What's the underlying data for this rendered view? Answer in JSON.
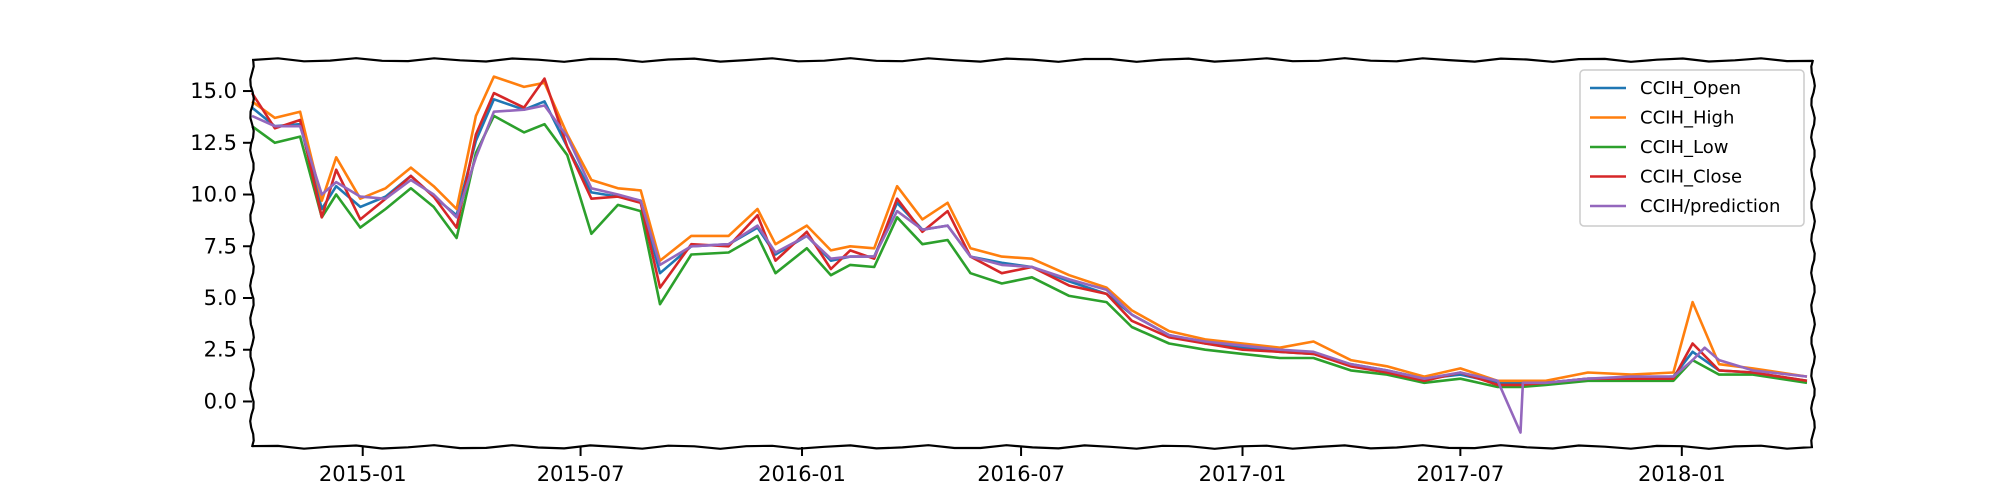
{
  "chart_data": {
    "type": "line",
    "title": "",
    "xlabel": "",
    "ylabel": "",
    "x_range": [
      "2014-10-01",
      "2018-04-20"
    ],
    "ylim": [
      -2.2,
      16.5
    ],
    "x_ticks": [
      "2015-01",
      "2015-07",
      "2016-01",
      "2016-07",
      "2017-01",
      "2017-07",
      "2018-01"
    ],
    "y_ticks": [
      "0.0",
      "2.5",
      "5.0",
      "7.5",
      "10.0",
      "12.5",
      "15.0"
    ],
    "grid": false,
    "legend_position": "top-right",
    "series": [
      {
        "name": "CCIH_Open",
        "color": "#1f77b4",
        "points": [
          [
            "2014-10-01",
            14.2
          ],
          [
            "2014-10-20",
            13.3
          ],
          [
            "2014-11-10",
            13.4
          ],
          [
            "2014-11-28",
            9.3
          ],
          [
            "2014-12-10",
            10.4
          ],
          [
            "2014-12-30",
            9.4
          ],
          [
            "2015-01-20",
            9.9
          ],
          [
            "2015-02-10",
            10.9
          ],
          [
            "2015-03-01",
            9.9
          ],
          [
            "2015-03-20",
            9.0
          ],
          [
            "2015-04-05",
            12.6
          ],
          [
            "2015-04-20",
            14.6
          ],
          [
            "2015-05-15",
            14.1
          ],
          [
            "2015-06-01",
            14.5
          ],
          [
            "2015-06-20",
            12.3
          ],
          [
            "2015-07-10",
            10.1
          ],
          [
            "2015-08-01",
            9.9
          ],
          [
            "2015-08-20",
            9.7
          ],
          [
            "2015-09-05",
            6.2
          ],
          [
            "2015-10-01",
            7.5
          ],
          [
            "2015-11-01",
            7.6
          ],
          [
            "2015-11-25",
            8.4
          ],
          [
            "2015-12-10",
            7.1
          ],
          [
            "2016-01-05",
            8.0
          ],
          [
            "2016-01-25",
            6.8
          ],
          [
            "2016-02-10",
            7.0
          ],
          [
            "2016-03-01",
            7.0
          ],
          [
            "2016-03-20",
            9.6
          ],
          [
            "2016-04-10",
            8.3
          ],
          [
            "2016-05-01",
            8.5
          ],
          [
            "2016-05-20",
            7.0
          ],
          [
            "2016-06-15",
            6.7
          ],
          [
            "2016-07-10",
            6.5
          ],
          [
            "2016-08-10",
            5.8
          ],
          [
            "2016-09-10",
            5.2
          ],
          [
            "2016-10-01",
            4.2
          ],
          [
            "2016-11-01",
            3.2
          ],
          [
            "2016-12-01",
            2.8
          ],
          [
            "2017-01-01",
            2.6
          ],
          [
            "2017-02-01",
            2.4
          ],
          [
            "2017-03-01",
            2.3
          ],
          [
            "2017-04-01",
            1.8
          ],
          [
            "2017-05-01",
            1.5
          ],
          [
            "2017-06-01",
            1.1
          ],
          [
            "2017-07-01",
            1.3
          ],
          [
            "2017-08-01",
            0.9
          ],
          [
            "2017-08-20",
            0.9
          ],
          [
            "2017-09-10",
            0.9
          ],
          [
            "2017-10-15",
            1.1
          ],
          [
            "2017-11-20",
            1.1
          ],
          [
            "2017-12-25",
            1.2
          ],
          [
            "2018-01-10",
            2.4
          ],
          [
            "2018-02-01",
            1.5
          ],
          [
            "2018-03-01",
            1.4
          ],
          [
            "2018-04-15",
            1.0
          ]
        ]
      },
      {
        "name": "CCIH_High",
        "color": "#ff7f0e",
        "points": [
          [
            "2014-10-01",
            14.5
          ],
          [
            "2014-10-20",
            13.7
          ],
          [
            "2014-11-10",
            14.0
          ],
          [
            "2014-11-28",
            9.7
          ],
          [
            "2014-12-10",
            11.8
          ],
          [
            "2014-12-30",
            9.8
          ],
          [
            "2015-01-20",
            10.3
          ],
          [
            "2015-02-10",
            11.3
          ],
          [
            "2015-03-01",
            10.4
          ],
          [
            "2015-03-20",
            9.3
          ],
          [
            "2015-04-05",
            13.8
          ],
          [
            "2015-04-20",
            15.7
          ],
          [
            "2015-05-15",
            15.2
          ],
          [
            "2015-06-01",
            15.4
          ],
          [
            "2015-06-20",
            12.9
          ],
          [
            "2015-07-10",
            10.7
          ],
          [
            "2015-08-01",
            10.3
          ],
          [
            "2015-08-20",
            10.2
          ],
          [
            "2015-09-05",
            6.8
          ],
          [
            "2015-10-01",
            8.0
          ],
          [
            "2015-11-01",
            8.0
          ],
          [
            "2015-11-25",
            9.3
          ],
          [
            "2015-12-10",
            7.6
          ],
          [
            "2016-01-05",
            8.5
          ],
          [
            "2016-01-25",
            7.3
          ],
          [
            "2016-02-10",
            7.5
          ],
          [
            "2016-03-01",
            7.4
          ],
          [
            "2016-03-20",
            10.4
          ],
          [
            "2016-04-10",
            8.8
          ],
          [
            "2016-05-01",
            9.6
          ],
          [
            "2016-05-20",
            7.4
          ],
          [
            "2016-06-15",
            7.0
          ],
          [
            "2016-07-10",
            6.9
          ],
          [
            "2016-08-10",
            6.1
          ],
          [
            "2016-09-10",
            5.5
          ],
          [
            "2016-10-01",
            4.4
          ],
          [
            "2016-11-01",
            3.4
          ],
          [
            "2016-12-01",
            3.0
          ],
          [
            "2017-01-01",
            2.8
          ],
          [
            "2017-02-01",
            2.6
          ],
          [
            "2017-03-01",
            2.9
          ],
          [
            "2017-04-01",
            2.0
          ],
          [
            "2017-05-01",
            1.7
          ],
          [
            "2017-06-01",
            1.2
          ],
          [
            "2017-07-01",
            1.6
          ],
          [
            "2017-08-01",
            1.0
          ],
          [
            "2017-08-20",
            1.0
          ],
          [
            "2017-09-10",
            1.0
          ],
          [
            "2017-10-15",
            1.4
          ],
          [
            "2017-11-20",
            1.3
          ],
          [
            "2017-12-25",
            1.4
          ],
          [
            "2018-01-10",
            4.8
          ],
          [
            "2018-02-01",
            1.8
          ],
          [
            "2018-03-01",
            1.6
          ],
          [
            "2018-04-15",
            1.2
          ]
        ]
      },
      {
        "name": "CCIH_Low",
        "color": "#2ca02c",
        "points": [
          [
            "2014-10-01",
            13.3
          ],
          [
            "2014-10-20",
            12.5
          ],
          [
            "2014-11-10",
            12.8
          ],
          [
            "2014-11-28",
            8.9
          ],
          [
            "2014-12-10",
            10.0
          ],
          [
            "2014-12-30",
            8.4
          ],
          [
            "2015-01-20",
            9.3
          ],
          [
            "2015-02-10",
            10.3
          ],
          [
            "2015-03-01",
            9.4
          ],
          [
            "2015-03-20",
            7.9
          ],
          [
            "2015-04-05",
            12.0
          ],
          [
            "2015-04-20",
            13.8
          ],
          [
            "2015-05-15",
            13.0
          ],
          [
            "2015-06-01",
            13.4
          ],
          [
            "2015-06-20",
            11.9
          ],
          [
            "2015-07-10",
            8.1
          ],
          [
            "2015-08-01",
            9.5
          ],
          [
            "2015-08-20",
            9.2
          ],
          [
            "2015-09-05",
            4.7
          ],
          [
            "2015-10-01",
            7.1
          ],
          [
            "2015-11-01",
            7.2
          ],
          [
            "2015-11-25",
            8.0
          ],
          [
            "2015-12-10",
            6.2
          ],
          [
            "2016-01-05",
            7.4
          ],
          [
            "2016-01-25",
            6.1
          ],
          [
            "2016-02-10",
            6.6
          ],
          [
            "2016-03-01",
            6.5
          ],
          [
            "2016-03-20",
            8.9
          ],
          [
            "2016-04-10",
            7.6
          ],
          [
            "2016-05-01",
            7.8
          ],
          [
            "2016-05-20",
            6.2
          ],
          [
            "2016-06-15",
            5.7
          ],
          [
            "2016-07-10",
            6.0
          ],
          [
            "2016-08-10",
            5.1
          ],
          [
            "2016-09-10",
            4.8
          ],
          [
            "2016-10-01",
            3.6
          ],
          [
            "2016-11-01",
            2.8
          ],
          [
            "2016-12-01",
            2.5
          ],
          [
            "2017-01-01",
            2.3
          ],
          [
            "2017-02-01",
            2.1
          ],
          [
            "2017-03-01",
            2.1
          ],
          [
            "2017-04-01",
            1.5
          ],
          [
            "2017-05-01",
            1.3
          ],
          [
            "2017-06-01",
            0.9
          ],
          [
            "2017-07-01",
            1.1
          ],
          [
            "2017-08-01",
            0.7
          ],
          [
            "2017-08-20",
            0.7
          ],
          [
            "2017-09-10",
            0.8
          ],
          [
            "2017-10-15",
            1.0
          ],
          [
            "2017-11-20",
            1.0
          ],
          [
            "2017-12-25",
            1.0
          ],
          [
            "2018-01-10",
            2.0
          ],
          [
            "2018-02-01",
            1.3
          ],
          [
            "2018-03-01",
            1.3
          ],
          [
            "2018-04-15",
            0.9
          ]
        ]
      },
      {
        "name": "CCIH_Close",
        "color": "#d62728",
        "points": [
          [
            "2014-10-01",
            14.9
          ],
          [
            "2014-10-20",
            13.2
          ],
          [
            "2014-11-10",
            13.6
          ],
          [
            "2014-11-28",
            8.9
          ],
          [
            "2014-12-10",
            11.2
          ],
          [
            "2014-12-30",
            8.8
          ],
          [
            "2015-01-20",
            9.8
          ],
          [
            "2015-02-10",
            10.9
          ],
          [
            "2015-03-01",
            9.9
          ],
          [
            "2015-03-20",
            8.4
          ],
          [
            "2015-04-05",
            12.9
          ],
          [
            "2015-04-20",
            14.9
          ],
          [
            "2015-05-15",
            14.2
          ],
          [
            "2015-06-01",
            15.6
          ],
          [
            "2015-06-20",
            12.3
          ],
          [
            "2015-07-10",
            9.8
          ],
          [
            "2015-08-01",
            9.9
          ],
          [
            "2015-08-20",
            9.6
          ],
          [
            "2015-09-05",
            5.5
          ],
          [
            "2015-10-01",
            7.6
          ],
          [
            "2015-11-01",
            7.5
          ],
          [
            "2015-11-25",
            9.0
          ],
          [
            "2015-12-10",
            6.8
          ],
          [
            "2016-01-05",
            8.2
          ],
          [
            "2016-01-25",
            6.4
          ],
          [
            "2016-02-10",
            7.3
          ],
          [
            "2016-03-01",
            6.9
          ],
          [
            "2016-03-20",
            9.8
          ],
          [
            "2016-04-10",
            8.2
          ],
          [
            "2016-05-01",
            9.2
          ],
          [
            "2016-05-20",
            7.0
          ],
          [
            "2016-06-15",
            6.2
          ],
          [
            "2016-07-10",
            6.5
          ],
          [
            "2016-08-10",
            5.6
          ],
          [
            "2016-09-10",
            5.2
          ],
          [
            "2016-10-01",
            3.9
          ],
          [
            "2016-11-01",
            3.1
          ],
          [
            "2016-12-01",
            2.8
          ],
          [
            "2017-01-01",
            2.5
          ],
          [
            "2017-02-01",
            2.4
          ],
          [
            "2017-03-01",
            2.3
          ],
          [
            "2017-04-01",
            1.7
          ],
          [
            "2017-05-01",
            1.4
          ],
          [
            "2017-06-01",
            1.0
          ],
          [
            "2017-07-01",
            1.4
          ],
          [
            "2017-08-01",
            0.8
          ],
          [
            "2017-08-20",
            0.8
          ],
          [
            "2017-09-10",
            0.9
          ],
          [
            "2017-10-15",
            1.1
          ],
          [
            "2017-11-20",
            1.1
          ],
          [
            "2017-12-25",
            1.1
          ],
          [
            "2018-01-10",
            2.8
          ],
          [
            "2018-02-01",
            1.5
          ],
          [
            "2018-03-01",
            1.4
          ],
          [
            "2018-04-15",
            1.0
          ]
        ]
      },
      {
        "name": "CCIH/prediction",
        "color": "#9467bd",
        "points": [
          [
            "2014-10-01",
            13.8
          ],
          [
            "2014-10-20",
            13.3
          ],
          [
            "2014-11-10",
            13.3
          ],
          [
            "2014-11-28",
            10.0
          ],
          [
            "2014-12-10",
            10.6
          ],
          [
            "2014-12-30",
            9.9
          ],
          [
            "2015-01-20",
            9.8
          ],
          [
            "2015-02-10",
            10.7
          ],
          [
            "2015-03-01",
            10.0
          ],
          [
            "2015-03-20",
            8.9
          ],
          [
            "2015-04-05",
            11.8
          ],
          [
            "2015-04-20",
            14.0
          ],
          [
            "2015-05-15",
            14.1
          ],
          [
            "2015-06-01",
            14.3
          ],
          [
            "2015-06-20",
            12.8
          ],
          [
            "2015-07-10",
            10.3
          ],
          [
            "2015-08-01",
            10.0
          ],
          [
            "2015-08-20",
            9.7
          ],
          [
            "2015-09-05",
            6.6
          ],
          [
            "2015-10-01",
            7.5
          ],
          [
            "2015-11-01",
            7.6
          ],
          [
            "2015-11-25",
            8.5
          ],
          [
            "2015-12-10",
            7.2
          ],
          [
            "2016-01-05",
            8.0
          ],
          [
            "2016-01-25",
            6.9
          ],
          [
            "2016-02-10",
            7.0
          ],
          [
            "2016-03-01",
            7.0
          ],
          [
            "2016-03-20",
            9.2
          ],
          [
            "2016-04-10",
            8.3
          ],
          [
            "2016-05-01",
            8.5
          ],
          [
            "2016-05-20",
            7.0
          ],
          [
            "2016-06-15",
            6.6
          ],
          [
            "2016-07-10",
            6.5
          ],
          [
            "2016-08-10",
            5.9
          ],
          [
            "2016-09-10",
            5.4
          ],
          [
            "2016-10-01",
            4.2
          ],
          [
            "2016-11-01",
            3.2
          ],
          [
            "2016-12-01",
            2.9
          ],
          [
            "2017-01-01",
            2.7
          ],
          [
            "2017-02-01",
            2.5
          ],
          [
            "2017-03-01",
            2.4
          ],
          [
            "2017-04-01",
            1.8
          ],
          [
            "2017-05-01",
            1.5
          ],
          [
            "2017-06-01",
            1.1
          ],
          [
            "2017-07-01",
            1.4
          ],
          [
            "2017-08-01",
            1.0
          ],
          [
            "2017-08-20",
            -1.5
          ],
          [
            "2017-08-22",
            0.9
          ],
          [
            "2017-09-10",
            0.9
          ],
          [
            "2017-10-15",
            1.1
          ],
          [
            "2017-11-20",
            1.2
          ],
          [
            "2017-12-25",
            1.2
          ],
          [
            "2018-01-10",
            2.0
          ],
          [
            "2018-01-20",
            2.6
          ],
          [
            "2018-02-01",
            2.0
          ],
          [
            "2018-03-01",
            1.5
          ],
          [
            "2018-04-15",
            1.2
          ]
        ]
      }
    ]
  }
}
